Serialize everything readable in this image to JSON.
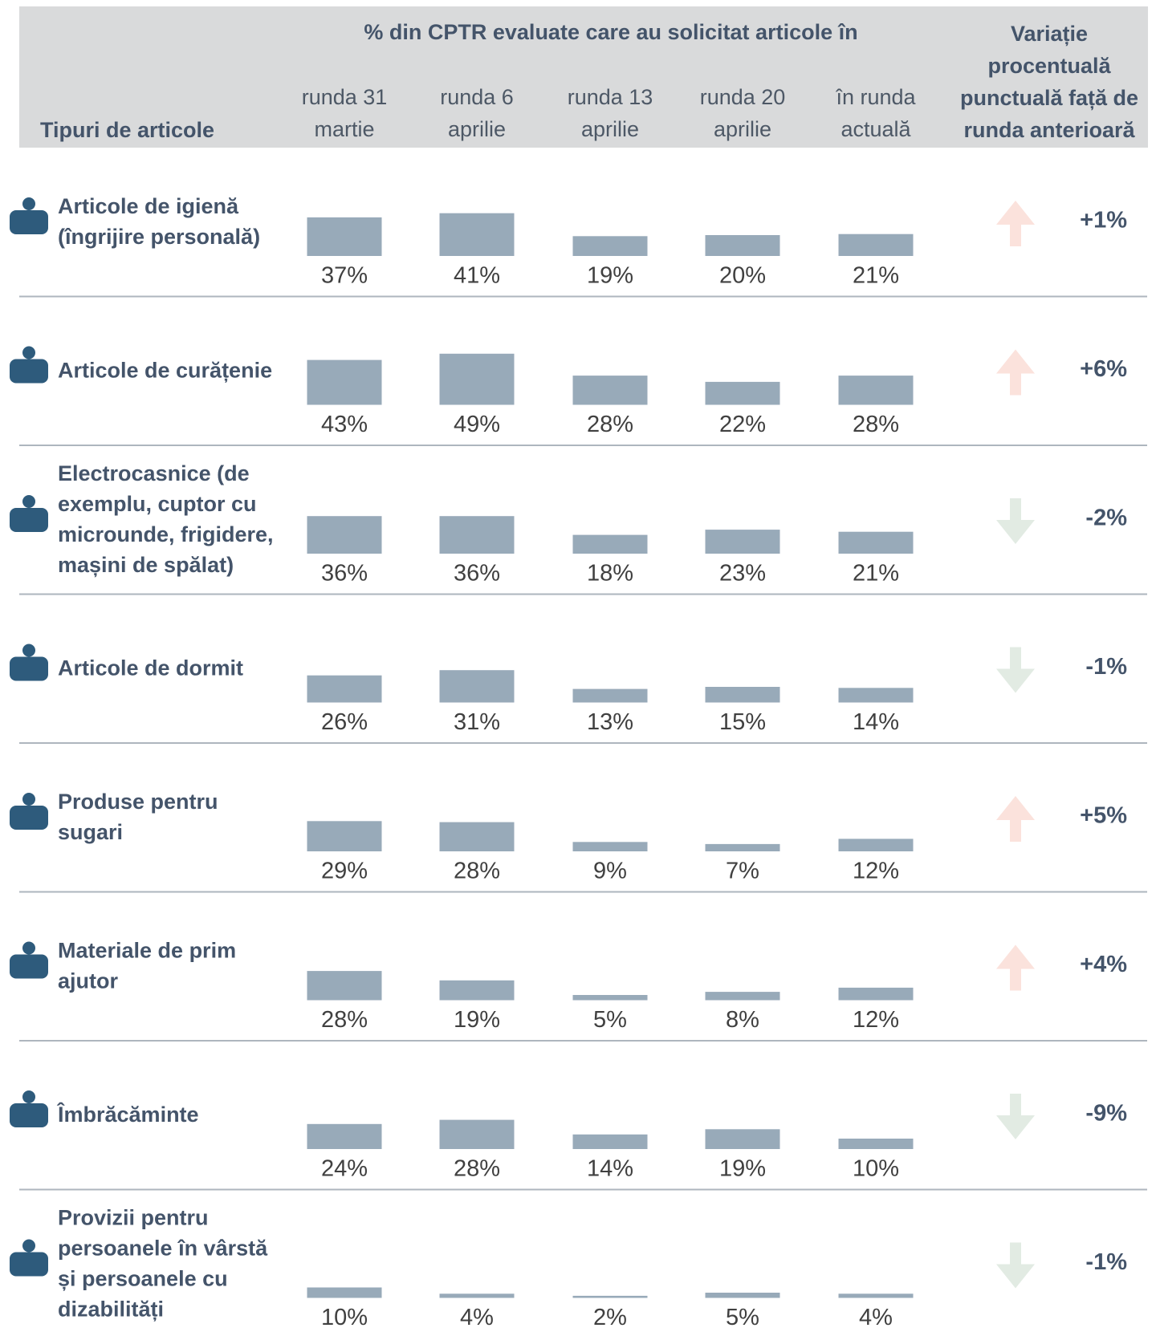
{
  "table": {
    "row_header": "Tipuri de articole",
    "group_header": "% din CPTR evaluate care au solicitat articole în",
    "columns": [
      [
        "runda 31",
        "martie"
      ],
      [
        "runda 6",
        "aprilie"
      ],
      [
        "runda 13",
        "aprilie"
      ],
      [
        "runda 20",
        "aprilie"
      ],
      [
        "în runda",
        "actuală"
      ]
    ],
    "change_header": [
      "Variație",
      "procentuală",
      "punctuală față de",
      "runda anterioară"
    ],
    "bar_color": "#98aab9",
    "rows": [
      {
        "label": [
          "Articole de igienă",
          "(îngrijire personală)"
        ],
        "values": [
          37,
          41,
          19,
          20,
          21
        ],
        "value_labels": [
          "37%",
          "41%",
          "19%",
          "20%",
          "21%"
        ],
        "change": "+1%"
      },
      {
        "label": [
          "Articole de curățenie"
        ],
        "values": [
          43,
          49,
          28,
          22,
          28
        ],
        "value_labels": [
          "43%",
          "49%",
          "28%",
          "22%",
          "28%"
        ],
        "change": "+6%"
      },
      {
        "label": [
          "Electrocasnice (de",
          "exemplu, cuptor cu",
          "microunde, frigidere,",
          "mașini de spălat)"
        ],
        "values": [
          36,
          36,
          18,
          23,
          21
        ],
        "value_labels": [
          "36%",
          "36%",
          "18%",
          "23%",
          "21%"
        ],
        "change": "-2%"
      },
      {
        "label": [
          "Articole de dormit"
        ],
        "values": [
          26,
          31,
          13,
          15,
          14
        ],
        "value_labels": [
          "26%",
          "31%",
          "13%",
          "15%",
          "14%"
        ],
        "change": "-1%"
      },
      {
        "label": [
          "Produse pentru",
          "sugari"
        ],
        "values": [
          29,
          28,
          9,
          7,
          12
        ],
        "value_labels": [
          "29%",
          "28%",
          "9%",
          "7%",
          "12%"
        ],
        "change": "+5%"
      },
      {
        "label": [
          "Materiale de prim",
          "ajutor"
        ],
        "values": [
          28,
          19,
          5,
          8,
          12
        ],
        "value_labels": [
          "28%",
          "19%",
          "5%",
          "8%",
          "12%"
        ],
        "change": "+4%"
      },
      {
        "label": [
          "Îmbrăcăminte"
        ],
        "values": [
          24,
          28,
          14,
          19,
          10
        ],
        "value_labels": [
          "24%",
          "28%",
          "14%",
          "19%",
          "10%"
        ],
        "change": "-9%"
      },
      {
        "label": [
          "Provizii pentru",
          "persoanele în vârstă",
          "și persoanele cu",
          "dizabilități"
        ],
        "values": [
          10,
          4,
          2,
          5,
          4
        ],
        "value_labels": [
          "10%",
          "4%",
          "2%",
          "5%",
          "4%"
        ],
        "change": "-1%"
      }
    ]
  }
}
